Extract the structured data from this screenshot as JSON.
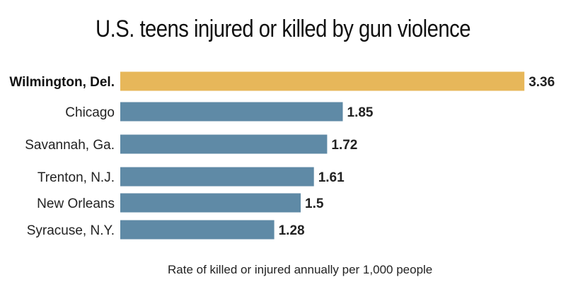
{
  "chart_data": {
    "type": "bar",
    "orientation": "horizontal",
    "title": "U.S. teens injured or killed by gun violence",
    "xlabel": "Rate of killed or injured annually per 1,000 people",
    "ylabel": "",
    "categories": [
      "Wilmington, Del.",
      "Chicago",
      "Savannah, Ga.",
      "Trenton, N.J.",
      "New Orleans",
      "Syracuse, N.Y."
    ],
    "values": [
      3.36,
      1.85,
      1.72,
      1.61,
      1.5,
      1.28
    ],
    "value_labels": [
      "3.36",
      "1.85",
      "1.72",
      "1.61",
      "1.5",
      "1.28"
    ],
    "highlight_index": 0,
    "grid": false,
    "legend": "none",
    "colors": {
      "highlight": "#e7b75a",
      "default": "#5f8aa6"
    }
  }
}
